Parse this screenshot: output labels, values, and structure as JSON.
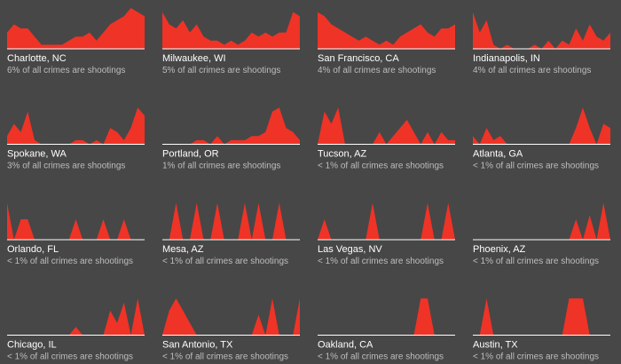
{
  "chart_data": [
    {
      "type": "area",
      "title": "Charlotte, NC",
      "subtitle": "6% of all crimes are shootings",
      "color": "#ef3326",
      "ylim": [
        0,
        10
      ],
      "values": [
        4,
        6,
        5,
        5,
        3,
        1,
        1,
        1,
        1,
        2,
        3,
        3,
        4,
        2,
        4,
        6,
        7,
        8,
        10,
        9,
        8
      ]
    },
    {
      "type": "area",
      "title": "Milwaukee, WI",
      "subtitle": "5% of all crimes are shootings",
      "color": "#ef3326",
      "ylim": [
        0,
        10
      ],
      "values": [
        9,
        6,
        5,
        7,
        4,
        6,
        3,
        2,
        2,
        1,
        2,
        1,
        2,
        4,
        3,
        4,
        3,
        4,
        4,
        9,
        8
      ]
    },
    {
      "type": "area",
      "title": "San Francisco, CA",
      "subtitle": "4% of all crimes are shootings",
      "color": "#ef3326",
      "ylim": [
        0,
        10
      ],
      "values": [
        9,
        8,
        6,
        5,
        4,
        3,
        2,
        3,
        2,
        1,
        2,
        1,
        3,
        4,
        5,
        6,
        4,
        3,
        5,
        5,
        6
      ]
    },
    {
      "type": "area",
      "title": "Indianapolis, IN",
      "subtitle": "4% of all crimes are shootings",
      "color": "#ef3326",
      "ylim": [
        0,
        10
      ],
      "values": [
        9,
        4,
        7,
        1,
        0,
        1,
        0,
        0,
        0,
        1,
        0,
        2,
        0,
        2,
        1,
        5,
        2,
        6,
        3,
        2,
        4
      ]
    },
    {
      "type": "area",
      "title": "Spokane, WA",
      "subtitle": "3% of all crimes are shootings",
      "color": "#ef3326",
      "ylim": [
        0,
        10
      ],
      "values": [
        2,
        5,
        3,
        8,
        1,
        0,
        0,
        0,
        0,
        0,
        1,
        1,
        0,
        1,
        0,
        4,
        3,
        1,
        4,
        9,
        7
      ]
    },
    {
      "type": "area",
      "title": "Portland, OR",
      "subtitle": "1% of all crimes are shootings",
      "color": "#ef3326",
      "ylim": [
        0,
        10
      ],
      "values": [
        0,
        0,
        0,
        0,
        0,
        1,
        1,
        0,
        2,
        0,
        1,
        1,
        1,
        2,
        2,
        3,
        8,
        9,
        4,
        3,
        1
      ]
    },
    {
      "type": "area",
      "title": "Tucson, AZ",
      "subtitle": "< 1% of all crimes are shootings",
      "color": "#ef3326",
      "ylim": [
        0,
        10
      ],
      "values": [
        0,
        8,
        5,
        9,
        0,
        0,
        0,
        0,
        0,
        3,
        0,
        2,
        4,
        6,
        3,
        0,
        3,
        0,
        3,
        1,
        1
      ]
    },
    {
      "type": "area",
      "title": "Atlanta, GA",
      "subtitle": "< 1% of all crimes are shootings",
      "color": "#ef3326",
      "ylim": [
        0,
        10
      ],
      "values": [
        2,
        0,
        4,
        1,
        2,
        0,
        0,
        0,
        0,
        0,
        0,
        0,
        0,
        0,
        0,
        4,
        9,
        4,
        0,
        5,
        4
      ]
    },
    {
      "type": "area",
      "title": "Orlando, FL",
      "subtitle": "< 1% of all crimes are shootings",
      "color": "#ef3326",
      "ylim": [
        0,
        10
      ],
      "values": [
        9,
        0,
        5,
        5,
        0,
        0,
        0,
        0,
        0,
        0,
        5,
        0,
        0,
        0,
        5,
        0,
        0,
        5,
        0,
        0,
        0
      ]
    },
    {
      "type": "area",
      "title": "Mesa, AZ",
      "subtitle": "< 1% of all crimes are shootings",
      "color": "#ef3326",
      "ylim": [
        0,
        10
      ],
      "values": [
        0,
        0,
        9,
        0,
        0,
        9,
        0,
        0,
        9,
        0,
        0,
        0,
        9,
        0,
        9,
        0,
        0,
        9,
        0,
        0,
        0
      ]
    },
    {
      "type": "area",
      "title": "Las Vegas, NV",
      "subtitle": "< 1% of all crimes are shootings",
      "color": "#ef3326",
      "ylim": [
        0,
        10
      ],
      "values": [
        0,
        5,
        0,
        0,
        0,
        0,
        0,
        0,
        9,
        0,
        0,
        0,
        0,
        0,
        0,
        0,
        9,
        0,
        0,
        9,
        0
      ]
    },
    {
      "type": "area",
      "title": "Phoenix, AZ",
      "subtitle": "< 1% of all crimes are shootings",
      "color": "#ef3326",
      "ylim": [
        0,
        10
      ],
      "values": [
        0,
        0,
        0,
        0,
        0,
        0,
        0,
        0,
        0,
        0,
        0,
        0,
        0,
        0,
        0,
        5,
        0,
        6,
        0,
        9,
        0
      ]
    },
    {
      "type": "area",
      "title": "Chicago, IL",
      "subtitle": "< 1% of all crimes are shootings",
      "color": "#ef3326",
      "ylim": [
        0,
        10
      ],
      "values": [
        0,
        0,
        0,
        0,
        0,
        0,
        0,
        0,
        0,
        0,
        2,
        0,
        0,
        0,
        0,
        6,
        3,
        8,
        0,
        9,
        0
      ]
    },
    {
      "type": "area",
      "title": "San Antonio, TX",
      "subtitle": "< 1% of all crimes are shootings",
      "color": "#ef3326",
      "ylim": [
        0,
        10
      ],
      "values": [
        0,
        6,
        9,
        6,
        3,
        0,
        0,
        0,
        0,
        0,
        0,
        0,
        0,
        0,
        5,
        0,
        9,
        0,
        0,
        0,
        9
      ]
    },
    {
      "type": "area",
      "title": "Oakland, CA",
      "subtitle": "< 1% of all crimes are shootings",
      "color": "#ef3326",
      "ylim": [
        0,
        10
      ],
      "values": [
        0,
        0,
        0,
        0,
        0,
        0,
        0,
        0,
        0,
        0,
        0,
        0,
        0,
        0,
        0,
        9,
        9,
        0,
        0,
        0,
        0
      ]
    },
    {
      "type": "area",
      "title": "Austin, TX",
      "subtitle": "< 1% of all crimes are shootings",
      "color": "#ef3326",
      "ylim": [
        0,
        10
      ],
      "values": [
        0,
        0,
        9,
        0,
        0,
        0,
        0,
        0,
        0,
        0,
        0,
        0,
        0,
        0,
        9,
        9,
        9,
        0,
        0,
        0,
        0
      ]
    }
  ]
}
